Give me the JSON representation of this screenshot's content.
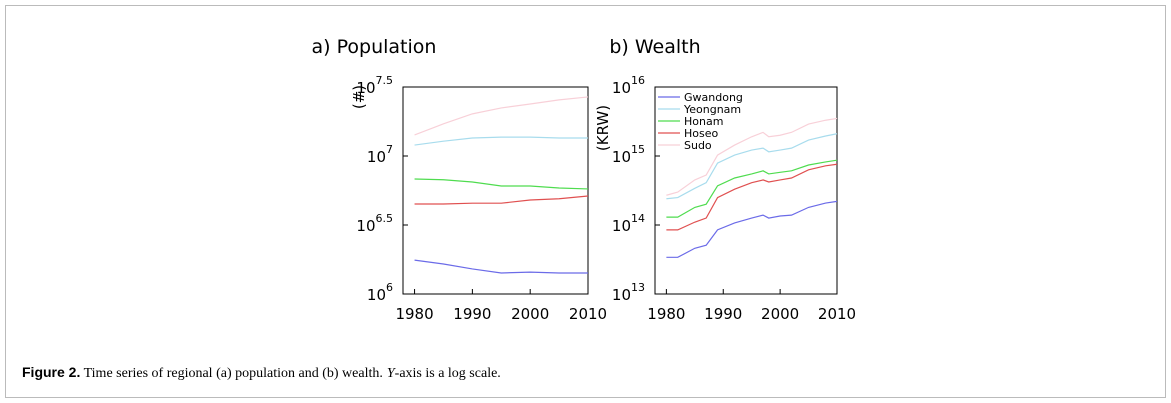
{
  "chart_data": [
    {
      "type": "line",
      "title": "a) Population",
      "y_label": "(#)",
      "log_y": true,
      "x": [
        1980,
        1985,
        1990,
        1995,
        2000,
        2005,
        2010
      ],
      "xlim": [
        1978,
        2010
      ],
      "xticks": [
        1980,
        1990,
        2000,
        2010
      ],
      "ylim": [
        1000000,
        31622776.6
      ],
      "yticks": [
        {
          "value": 1000000,
          "label": [
            "10",
            "6"
          ]
        },
        {
          "value": 3162277.7,
          "label": [
            "10",
            "6.5"
          ]
        },
        {
          "value": 10000000,
          "label": [
            "10",
            "7"
          ]
        },
        {
          "value": 31622776.6,
          "label": [
            "10",
            "7.5"
          ]
        }
      ],
      "series": [
        {
          "color": "#6b6be8",
          "values": [
            1760000,
            1650000,
            1520000,
            1420000,
            1440000,
            1420000,
            1420000
          ]
        },
        {
          "color": "#a8dced",
          "values": [
            12000000,
            12800000,
            13500000,
            13700000,
            13700000,
            13500000,
            13500000
          ]
        },
        {
          "color": "#4fdc4f",
          "values": [
            6810000,
            6730000,
            6480000,
            6060000,
            6060000,
            5860000,
            5770000
          ]
        },
        {
          "color": "#e05050",
          "values": [
            4490000,
            4490000,
            4550000,
            4550000,
            4800000,
            4900000,
            5130000
          ]
        },
        {
          "color": "#f8d0d8",
          "values": [
            14200000,
            17100000,
            20200000,
            22300000,
            23800000,
            25500000,
            26800000
          ]
        }
      ]
    },
    {
      "type": "line",
      "title": "b) Wealth",
      "y_label": "(KRW)",
      "log_y": true,
      "legend": "upper left",
      "x": [
        1980,
        1982,
        1985,
        1987,
        1989,
        1992,
        1995,
        1997,
        1998,
        2000,
        2002,
        2005,
        2008,
        2010
      ],
      "xlim": [
        1978,
        2010
      ],
      "xticks": [
        1980,
        1990,
        2000,
        2010
      ],
      "ylim": [
        10000000000000.0,
        1e+16
      ],
      "yticks": [
        {
          "value": 10000000000000.0,
          "label": [
            "10",
            "13"
          ]
        },
        {
          "value": 100000000000000.0,
          "label": [
            "10",
            "14"
          ]
        },
        {
          "value": 1000000000000000.0,
          "label": [
            "10",
            "15"
          ]
        },
        {
          "value": 1e+16,
          "label": [
            "10",
            "16"
          ]
        }
      ],
      "series": [
        {
          "name": "Gwandong",
          "color": "#6b6be8",
          "values": [
            34000000000000.0,
            34000000000000.0,
            46000000000000.0,
            51000000000000.0,
            85000000000000.0,
            107000000000000.0,
            126000000000000.0,
            139000000000000.0,
            126000000000000.0,
            135000000000000.0,
            139000000000000.0,
            180000000000000.0,
            208000000000000.0,
            220000000000000.0
          ]
        },
        {
          "name": "Yeongnam",
          "color": "#a8dced",
          "values": [
            240000000000000.0,
            250000000000000.0,
            340000000000000.0,
            410000000000000.0,
            790000000000000.0,
            1030000000000000.0,
            1220000000000000.0,
            1300000000000000.0,
            1150000000000000.0,
            1220000000000000.0,
            1300000000000000.0,
            1700000000000000.0,
            1950000000000000.0,
            2100000000000000.0
          ]
        },
        {
          "name": "Honam",
          "color": "#4fdc4f",
          "values": [
            130000000000000.0,
            130000000000000.0,
            180000000000000.0,
            200000000000000.0,
            370000000000000.0,
            480000000000000.0,
            550000000000000.0,
            610000000000000.0,
            550000000000000.0,
            580000000000000.0,
            610000000000000.0,
            740000000000000.0,
            820000000000000.0,
            870000000000000.0
          ]
        },
        {
          "name": "Hoseo",
          "color": "#e05050",
          "values": [
            85000000000000.0,
            85000000000000.0,
            110000000000000.0,
            126000000000000.0,
            250000000000000.0,
            330000000000000.0,
            410000000000000.0,
            450000000000000.0,
            420000000000000.0,
            450000000000000.0,
            480000000000000.0,
            630000000000000.0,
            720000000000000.0,
            760000000000000.0
          ]
        },
        {
          "name": "Sudo",
          "color": "#f8d0d8",
          "values": [
            270000000000000.0,
            300000000000000.0,
            450000000000000.0,
            530000000000000.0,
            1030000000000000.0,
            1440000000000000.0,
            1900000000000000.0,
            2200000000000000.0,
            1900000000000000.0,
            2000000000000000.0,
            2200000000000000.0,
            2900000000000000.0,
            3300000000000000.0,
            3500000000000000.0
          ]
        }
      ]
    }
  ],
  "caption": [
    "Figure 2.",
    "Time series of regional (a) population and (b) wealth.",
    "Y",
    "-axis is a log scale."
  ]
}
